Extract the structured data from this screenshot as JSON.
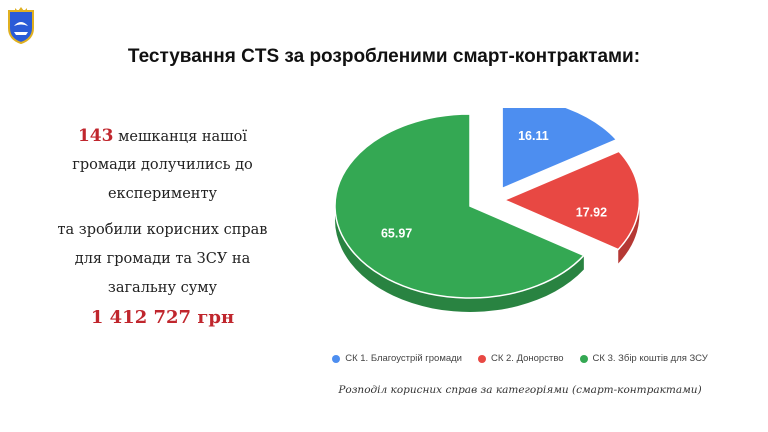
{
  "title": "Тестування CTS за розробленими смарт-контрактами:",
  "summary": {
    "count": "143",
    "line1_rest": " мешканця нашої",
    "line2": "громади долучились до",
    "line3": "експерименту",
    "line4": "та зробили корисних справ",
    "line5": "для громади та ЗСУ на",
    "line6": "загальну суму",
    "amount": "1 412 727 грн"
  },
  "caption": "Розподіл корисних справ за категоріями (смарт-контрактами)",
  "colors": {
    "accent_red": "#c0262d",
    "blue": "#4d8ef0",
    "red": "#e84843",
    "green": "#34a853"
  },
  "chart_data": {
    "type": "pie",
    "style": "3d-exploded",
    "categories": [
      "СК 1. Благоустрій громади",
      "СК 2. Донорство",
      "СК 3. Збір коштів для ЗСУ"
    ],
    "values": [
      16.11,
      17.92,
      65.97
    ],
    "labels": [
      "16.11",
      "17.92",
      "65.97"
    ],
    "colors": [
      "#4d8ef0",
      "#e84843",
      "#34a853"
    ],
    "legend_position": "bottom"
  }
}
